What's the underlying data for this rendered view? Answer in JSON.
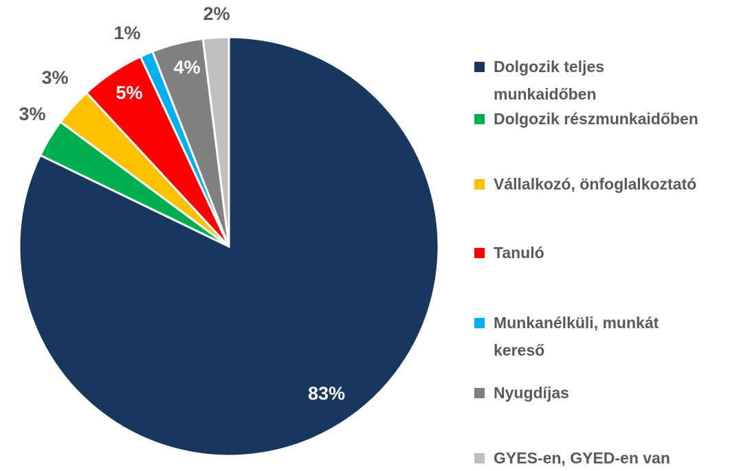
{
  "chart_data": {
    "type": "pie",
    "categories": [
      "Dolgozik teljes munkaidőben",
      "Dolgozik részmunkaidőben",
      "Vállalkozó, önfoglalkoztató",
      "Tanuló",
      "Munkanélküli, munkát kereső",
      "Nyugdíjas",
      "GYES-en, GYED-en van"
    ],
    "values": [
      83,
      3,
      3,
      5,
      1,
      4,
      2
    ],
    "value_labels": [
      "83%",
      "3%",
      "3%",
      "5%",
      "1%",
      "4%",
      "2%"
    ],
    "colors": [
      "#17375e",
      "#00b050",
      "#ffc000",
      "#ff0000",
      "#00b0f0",
      "#808080",
      "#bfbfbf"
    ],
    "legend": "right"
  }
}
